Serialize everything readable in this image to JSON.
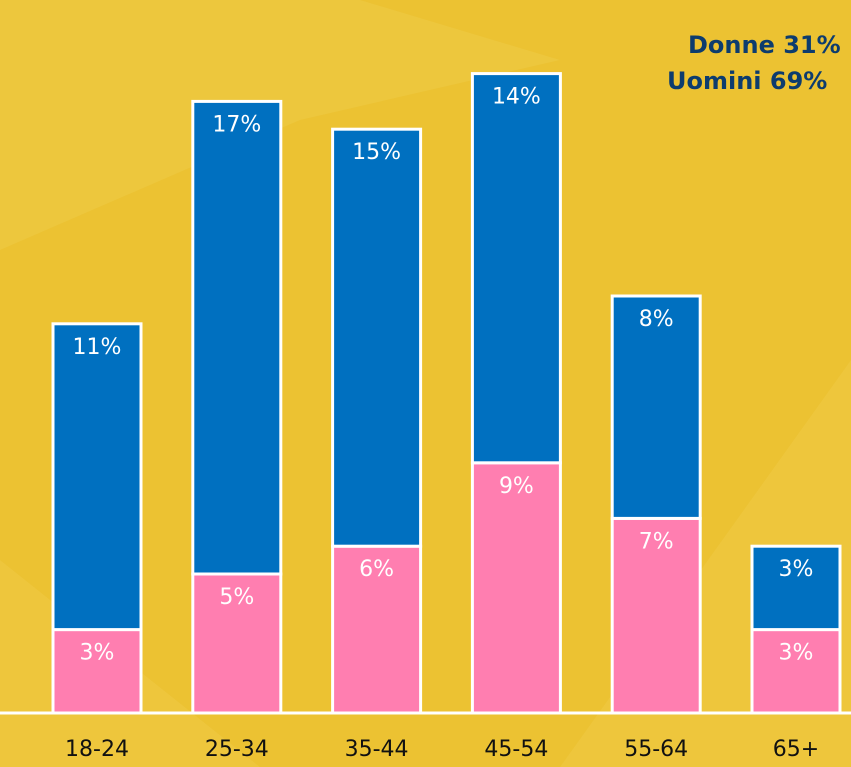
{
  "chart_data": {
    "type": "stacked_bar",
    "categories": [
      "18-24",
      "25-34",
      "35-44",
      "45-54",
      "55-64",
      "65+"
    ],
    "series": [
      {
        "name": "Donne 31%",
        "color": "#ff7eb0",
        "values": [
          3,
          5,
          6,
          9,
          7,
          3
        ],
        "value_labels": [
          "3%",
          "5%",
          "6%",
          "9%",
          "7%",
          "3%"
        ]
      },
      {
        "name": "Uomini 69%",
        "color": "#0070c0",
        "values": [
          11,
          17,
          15,
          14,
          8,
          3
        ],
        "value_labels": [
          "11%",
          "17%",
          "15%",
          "14%",
          "8%",
          "3%"
        ]
      }
    ]
  }
}
